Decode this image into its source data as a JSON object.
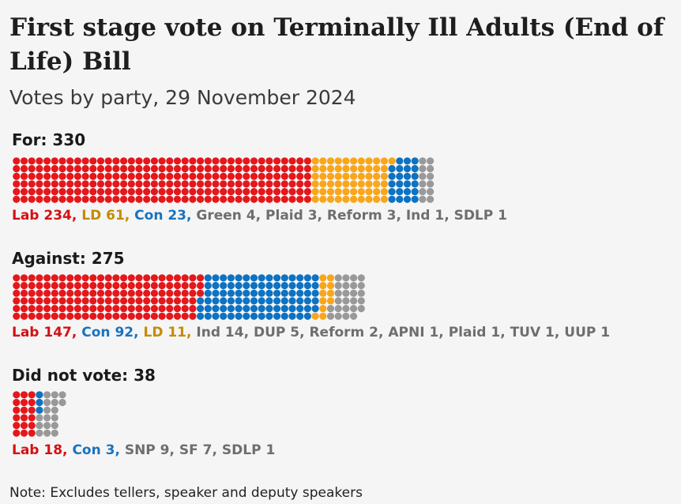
{
  "chart_data": {
    "type": "waffle",
    "title": "First stage vote on Terminally Ill Adults (End of Life) Bill",
    "subtitle": "Votes by party, 29 November 2024",
    "note": "Note: Excludes tellers, speaker and deputy speakers",
    "colors": {
      "Lab": "#e4171b",
      "LD": "#f9a61a",
      "Con": "#0d72c2",
      "Other": "#999999"
    },
    "label_colors": {
      "Lab": "#d41113",
      "LD": "#c48b00",
      "Con": "#1873c0",
      "Other": "#6e6e6e"
    },
    "groups": [
      {
        "heading": "For: 330",
        "label": "For",
        "total": 330,
        "series": [
          {
            "name": "Lab",
            "value": 234,
            "text": "Lab 234",
            "color_key": "Lab"
          },
          {
            "name": "LD",
            "value": 61,
            "text": "LD 61",
            "color_key": "LD"
          },
          {
            "name": "Con",
            "value": 23,
            "text": "Con 23",
            "color_key": "Con"
          },
          {
            "name": "Green",
            "value": 4,
            "text": "Green 4",
            "color_key": "Other"
          },
          {
            "name": "Plaid",
            "value": 3,
            "text": "Plaid 3",
            "color_key": "Other"
          },
          {
            "name": "Reform",
            "value": 3,
            "text": "Reform 3",
            "color_key": "Other"
          },
          {
            "name": "Ind",
            "value": 1,
            "text": "Ind 1",
            "color_key": "Other"
          },
          {
            "name": "SDLP",
            "value": 1,
            "text": "SDLP 1",
            "color_key": "Other"
          }
        ]
      },
      {
        "heading": "Against: 275",
        "label": "Against",
        "total": 275,
        "series": [
          {
            "name": "Lab",
            "value": 147,
            "text": "Lab 147",
            "color_key": "Lab"
          },
          {
            "name": "Con",
            "value": 92,
            "text": "Con 92",
            "color_key": "Con"
          },
          {
            "name": "LD",
            "value": 11,
            "text": "LD 11",
            "color_key": "LD"
          },
          {
            "name": "Ind",
            "value": 14,
            "text": "Ind 14",
            "color_key": "Other"
          },
          {
            "name": "DUP",
            "value": 5,
            "text": "DUP 5",
            "color_key": "Other"
          },
          {
            "name": "Reform",
            "value": 2,
            "text": "Reform 2",
            "color_key": "Other"
          },
          {
            "name": "APNI",
            "value": 1,
            "text": "APNI 1",
            "color_key": "Other"
          },
          {
            "name": "Plaid",
            "value": 1,
            "text": "Plaid 1",
            "color_key": "Other"
          },
          {
            "name": "TUV",
            "value": 1,
            "text": "TUV 1",
            "color_key": "Other"
          },
          {
            "name": "UUP",
            "value": 1,
            "text": "UUP 1",
            "color_key": "Other"
          }
        ]
      },
      {
        "heading": "Did not vote: 38",
        "label": "Did not vote",
        "total": 38,
        "series": [
          {
            "name": "Lab",
            "value": 18,
            "text": "Lab 18",
            "color_key": "Lab"
          },
          {
            "name": "Con",
            "value": 3,
            "text": "Con 3",
            "color_key": "Con"
          },
          {
            "name": "SNP",
            "value": 9,
            "text": "SNP 9",
            "color_key": "Other"
          },
          {
            "name": "SF",
            "value": 7,
            "text": "SF 7",
            "color_key": "Other"
          },
          {
            "name": "SDLP",
            "value": 1,
            "text": "SDLP 1",
            "color_key": "Other"
          }
        ]
      }
    ]
  }
}
